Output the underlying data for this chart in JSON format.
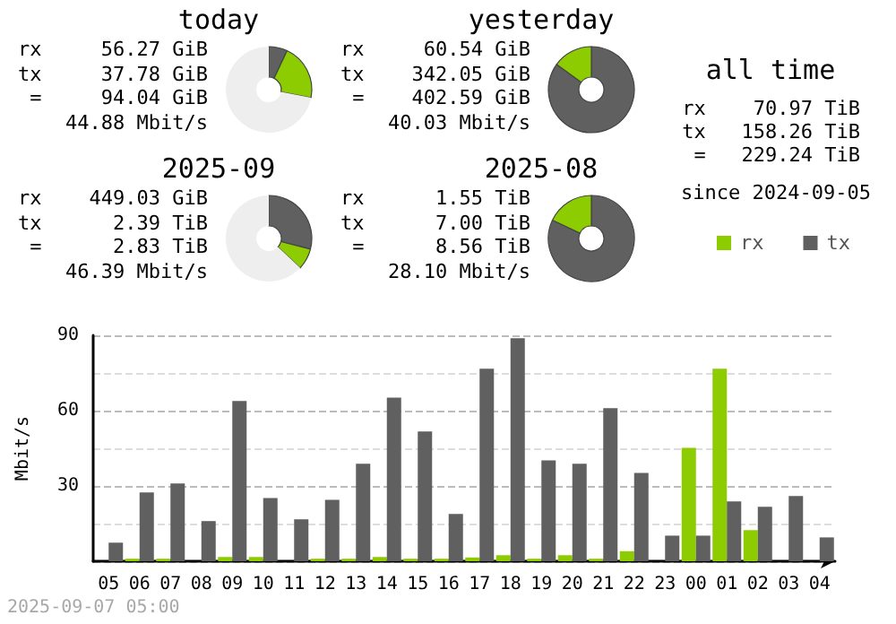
{
  "chart_data": [
    {
      "type": "donut",
      "title": "today",
      "categories": [
        null,
        null,
        null
      ],
      "values": [
        7,
        21,
        72
      ],
      "colors": [
        "#606060",
        "#8ccc00",
        "#eeeeee"
      ],
      "annotations": [
        "rx     56.27 GiB",
        "tx     37.78 GiB",
        " =     94.04 GiB",
        "44.88 Mbit/s"
      ]
    },
    {
      "type": "donut",
      "title": "yesterday",
      "categories": [
        null,
        null
      ],
      "values": [
        85,
        15
      ],
      "colors": [
        "#606060",
        "#8ccc00"
      ],
      "annotations": [
        "rx     60.54 GiB",
        "tx    342.05 GiB",
        " =    402.59 GiB",
        "40.03 Mbit/s"
      ]
    },
    {
      "type": "donut",
      "title": "2025-09",
      "categories": [
        null,
        null,
        null
      ],
      "values": [
        29,
        8,
        63
      ],
      "colors": [
        "#606060",
        "#8ccc00",
        "#eeeeee"
      ],
      "annotations": [
        "rx    449.03 GiB",
        "tx      2.39 TiB",
        " =      2.83 TiB",
        "46.39 Mbit/s"
      ]
    },
    {
      "type": "donut",
      "title": "2025-08",
      "categories": [
        null,
        null
      ],
      "values": [
        82,
        18
      ],
      "colors": [
        "#606060",
        "#8ccc00"
      ],
      "annotations": [
        "rx      1.55 TiB",
        "tx      7.00 TiB",
        " =      8.56 TiB",
        "28.10 Mbit/s"
      ]
    },
    {
      "type": "other",
      "title": "all time",
      "annotations": [
        "rx    70.97 TiB",
        "tx   158.26 TiB",
        " =   229.24 TiB",
        "since 2024-09-05"
      ]
    },
    {
      "type": "bar",
      "ylabel": "Mbit/s",
      "categories": [
        "05",
        "06",
        "07",
        "08",
        "09",
        "10",
        "11",
        "12",
        "13",
        "14",
        "15",
        "16",
        "17",
        "18",
        "19",
        "20",
        "21",
        "22",
        "23",
        "00",
        "01",
        "02",
        "03",
        "04"
      ],
      "series": [
        {
          "name": "rx",
          "color": "#8ccc00",
          "values": [
            0,
            1,
            1,
            0,
            1.7,
            1.7,
            0,
            1,
            1,
            1.7,
            1,
            1,
            1.5,
            2.4,
            1,
            2.4,
            1,
            4,
            0,
            45.2,
            76.7,
            12.4,
            0,
            0
          ]
        },
        {
          "name": "tx",
          "color": "#606060",
          "values": [
            7.4,
            27.4,
            31,
            16,
            63.8,
            25.2,
            16.7,
            24.5,
            38.8,
            65.2,
            51.7,
            18.8,
            76.7,
            88.8,
            40.2,
            38.8,
            61,
            35.2,
            10.2,
            10.2,
            23.8,
            21.7,
            26,
            9.5
          ]
        }
      ],
      "ylim": [
        0,
        90
      ],
      "yticks": [
        {
          "value": 0,
          "label": null
        },
        {
          "value": 15,
          "label": null
        },
        30,
        {
          "value": 45,
          "label": null
        },
        60,
        {
          "value": 75,
          "label": null
        },
        90
      ],
      "grid": true,
      "legend": "top right",
      "annotations": [
        "2025-09-07 05:00"
      ]
    }
  ]
}
